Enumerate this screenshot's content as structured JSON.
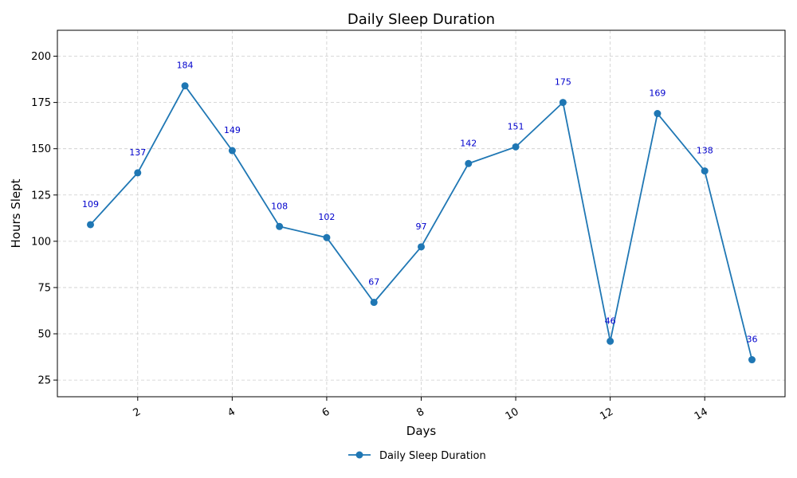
{
  "chart_data": {
    "type": "line",
    "title": "Daily Sleep Duration",
    "xlabel": "Days",
    "ylabel": "Hours Slept",
    "x": [
      1,
      2,
      3,
      4,
      5,
      6,
      7,
      8,
      9,
      10,
      11,
      12,
      13,
      14,
      15
    ],
    "series": [
      {
        "name": "Daily Sleep Duration",
        "values": [
          109,
          137,
          184,
          149,
          108,
          102,
          67,
          97,
          142,
          151,
          175,
          46,
          169,
          138,
          36
        ]
      }
    ],
    "xlim": [
      0.3,
      15.7
    ],
    "ylim": [
      16,
      214
    ],
    "xticks": [
      2,
      4,
      6,
      8,
      10,
      12,
      14
    ],
    "yticks": [
      25,
      50,
      75,
      100,
      125,
      150,
      175,
      200
    ],
    "xtick_rotation": 30,
    "grid": true,
    "legend_position": "bottom-center",
    "colors": {
      "line": "#1f77b4",
      "data_labels": "#0000cc",
      "grid": "#cccccc"
    }
  }
}
